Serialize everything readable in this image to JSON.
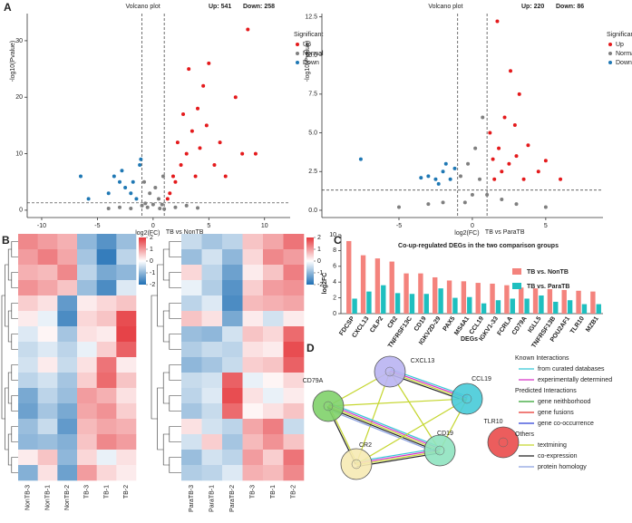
{
  "panel_labels": [
    "A",
    "B",
    "C",
    "D"
  ],
  "chart_data": [
    {
      "type": "scatter",
      "title": "Volcano plot",
      "stats": [
        "Up: 541",
        "Down: 258"
      ],
      "xlabel": "log2(FC)",
      "ylabel": "-log10(Pvalue)",
      "comparison": "TB  vs NonTB",
      "legend_title": "Significant",
      "xlim": [
        -11.3,
        12.3
      ],
      "xticks": [
        -10,
        -5,
        0,
        5,
        10
      ],
      "ylim": [
        -1.3,
        34.8
      ],
      "yticks": [
        0,
        10,
        20,
        30
      ],
      "vlines": [
        -1,
        1
      ],
      "hline": 1.3,
      "series": [
        {
          "name": "Up",
          "color": "#e41a1c",
          "x": [
            1.5,
            2,
            2.5,
            3,
            3.5,
            4,
            4.5,
            5,
            3.2,
            4.8,
            6,
            7.4,
            8.5,
            9.2,
            2.2,
            5.5,
            1.8,
            3.8,
            2.7,
            4.2,
            6.5,
            8,
            1.3
          ],
          "y": [
            3,
            5,
            8,
            10,
            14,
            18,
            22,
            26,
            25,
            15,
            12,
            20,
            32,
            10,
            12,
            8,
            6,
            6,
            17,
            11,
            6,
            10,
            2
          ]
        },
        {
          "name": "Normal",
          "color": "#7f7f7f",
          "x": [
            -0.5,
            0,
            0.5,
            0.8,
            -0.3,
            0.2,
            -2,
            2,
            3,
            -3,
            1,
            -1,
            0.6,
            -0.7,
            4,
            -4,
            0.9,
            -0.8
          ],
          "y": [
            0.5,
            1,
            2,
            1,
            3,
            4,
            0.3,
            0.5,
            0.8,
            0.5,
            0.2,
            0.8,
            0.3,
            1.2,
            0.4,
            0.3,
            6,
            5
          ]
        },
        {
          "name": "Down",
          "color": "#1f78b4",
          "x": [
            -1.5,
            -2,
            -2.5,
            -3,
            -3.5,
            -1.2,
            -1.1,
            -4,
            -2.8,
            -6.5,
            -5.8,
            -1.8
          ],
          "y": [
            2,
            3,
            4,
            5,
            6,
            8,
            9,
            3,
            7,
            6,
            2,
            5
          ]
        }
      ]
    },
    {
      "type": "scatter",
      "title": "Volcano plot",
      "stats": [
        "Up: 220",
        "Down: 86"
      ],
      "xlabel": "log2(FC)",
      "ylabel": "-log10(Pvalue)",
      "comparison": "TB  vs ParaTB",
      "legend_title": "Significant",
      "xlim": [
        -10.25,
        8.9
      ],
      "xticks": [
        -5,
        0,
        5
      ],
      "ylim": [
        -0.47,
        12.7
      ],
      "yticks": [
        {
          "value": 0,
          "label": "0.0"
        },
        {
          "value": 2.5,
          "label": "2.5"
        },
        {
          "value": 5,
          "label": "5.0"
        },
        {
          "value": 7.5,
          "label": "7.5"
        },
        {
          "value": 10,
          "label": "10.0"
        },
        {
          "value": 12.5,
          "label": "12.5"
        }
      ],
      "vlines": [
        -1,
        1
      ],
      "hline": 1.3,
      "series": [
        {
          "name": "Up",
          "color": "#e41a1c",
          "x": [
            1.5,
            2,
            2.5,
            3,
            1.8,
            2.2,
            1.2,
            3.5,
            4.5,
            5,
            2.6,
            1.7,
            3.2,
            2.9,
            6,
            1.4,
            3.8
          ],
          "y": [
            2,
            2.5,
            3,
            3.5,
            4,
            6,
            5,
            2,
            2.5,
            3.2,
            9,
            12.2,
            7.5,
            5.5,
            2,
            3.3,
            4.2
          ]
        },
        {
          "name": "Normal",
          "color": "#7f7f7f",
          "x": [
            -0.5,
            0,
            0.5,
            -0.3,
            0.2,
            -2,
            2,
            3,
            -3,
            0.7,
            -0.8,
            1,
            5,
            -5
          ],
          "y": [
            0.5,
            1,
            2,
            3,
            4,
            0.5,
            0.7,
            0.4,
            0.4,
            6,
            2.2,
            1,
            0.2,
            0.2
          ]
        },
        {
          "name": "Down",
          "color": "#1f78b4",
          "x": [
            -1.5,
            -2,
            -2.5,
            -3,
            -1.8,
            -1.2,
            -3.5,
            -7.6,
            -2.3
          ],
          "y": [
            2,
            2.5,
            2,
            2.2,
            3,
            2.7,
            2.1,
            3.3,
            1.7
          ]
        }
      ]
    },
    {
      "type": "heatmap",
      "columns": [
        "NonTB-3",
        "NonTB-1",
        "NonTB-2",
        "TB-3",
        "TB-1",
        "TB-2"
      ],
      "colorscale": [
        "#1f6fb4",
        "#ffffff",
        "#e5393e"
      ],
      "clim": [
        -2,
        2
      ],
      "cbar_ticks": [
        2,
        1,
        0,
        -1,
        -2
      ],
      "rows": [
        [
          1.2,
          1.0,
          0.8,
          -1.0,
          -1.5,
          -0.9
        ],
        [
          1.0,
          1.3,
          0.9,
          -0.8,
          -1.8,
          -0.6
        ],
        [
          0.8,
          0.7,
          1.2,
          -0.6,
          -1.2,
          -1.0
        ],
        [
          1.1,
          0.9,
          0.6,
          -0.9,
          -1.6,
          -0.3
        ],
        [
          0.5,
          0.3,
          -1.4,
          0.2,
          0.4,
          0.6
        ],
        [
          0.2,
          -0.2,
          -1.6,
          0.4,
          0.6,
          1.8
        ],
        [
          -0.3,
          0.1,
          -0.8,
          0.3,
          0.2,
          1.9
        ],
        [
          -0.5,
          -0.3,
          -0.6,
          -0.2,
          0.5,
          1.6
        ],
        [
          -0.4,
          0.2,
          -0.5,
          0.3,
          1.4,
          0.2
        ],
        [
          -0.6,
          -0.4,
          -0.8,
          0.5,
          1.5,
          0.6
        ],
        [
          -1.2,
          -0.6,
          -0.9,
          1.0,
          0.8,
          0.3
        ],
        [
          -1.3,
          -0.8,
          -1.2,
          0.9,
          1.1,
          0.5
        ],
        [
          -0.9,
          -0.5,
          -1.4,
          0.7,
          0.9,
          0.8
        ],
        [
          -1.0,
          -0.9,
          -1.1,
          0.6,
          1.2,
          1.0
        ],
        [
          0.2,
          0.6,
          -1.0,
          0.4,
          -0.2,
          0.3
        ],
        [
          -1.1,
          0.3,
          -1.3,
          1.0,
          0.4,
          0.2
        ]
      ]
    },
    {
      "type": "heatmap",
      "columns": [
        "ParaTB-3",
        "ParaTB-1",
        "ParaTB-2",
        "TB-3",
        "TB-1",
        "TB-2"
      ],
      "colorscale": [
        "#1f6fb4",
        "#ffffff",
        "#e5393e"
      ],
      "clim": [
        -2,
        2
      ],
      "cbar_ticks": [
        2,
        1,
        0,
        -1,
        -2
      ],
      "rows": [
        [
          -0.5,
          -0.8,
          -0.6,
          0.6,
          0.9,
          1.4
        ],
        [
          -0.9,
          -0.4,
          -1.0,
          0.4,
          1.2,
          1.0
        ],
        [
          0.4,
          -0.6,
          -1.3,
          0.2,
          0.6,
          1.3
        ],
        [
          -0.2,
          -0.7,
          -1.5,
          0.5,
          1.0,
          1.1
        ],
        [
          -0.6,
          -0.3,
          -1.6,
          0.7,
          0.8,
          0.9
        ],
        [
          0.6,
          0.3,
          -1.2,
          0.2,
          -0.4,
          0.2
        ],
        [
          -0.9,
          -1.0,
          -0.4,
          0.6,
          0.4,
          1.5
        ],
        [
          -0.7,
          -0.5,
          -0.6,
          0.3,
          0.2,
          1.8
        ],
        [
          -1.0,
          -0.8,
          -0.5,
          0.5,
          0.6,
          1.6
        ],
        [
          -0.5,
          -0.4,
          1.6,
          -0.2,
          0.1,
          0.4
        ],
        [
          -0.6,
          -0.3,
          1.8,
          0.3,
          -0.2,
          0.2
        ],
        [
          -0.8,
          -0.5,
          1.5,
          0.1,
          0.3,
          0.6
        ],
        [
          0.3,
          -0.4,
          -0.6,
          0.9,
          1.3,
          -0.5
        ],
        [
          -0.4,
          0.5,
          -0.8,
          0.7,
          1.1,
          0.6
        ],
        [
          -0.9,
          -0.4,
          -0.6,
          1.0,
          0.5,
          1.4
        ],
        [
          -0.7,
          -0.6,
          -0.3,
          0.8,
          0.7,
          1.2
        ]
      ]
    },
    {
      "type": "bar",
      "title": "Co-up-regulated DEGs in the two comparison groups",
      "xlabel": "DEGs",
      "ylabel": "log2FC",
      "categories": [
        "FDCSP",
        "CXCL13",
        "CILP2",
        "CR2",
        "TNFRSF13C",
        "CD19",
        "IGKV2D-29",
        "PAX5",
        "MS4A1",
        "CCL19",
        "IGKV1-33",
        "FCRLA",
        "CD79A",
        "IGLL5",
        "TNFRSF13B",
        "POU2AF1",
        "TLR10",
        "MZB1"
      ],
      "ylim": [
        0,
        10
      ],
      "yticks": [
        0,
        2,
        4,
        6,
        8,
        10
      ],
      "legend": "upper right",
      "series": [
        {
          "name": "TB vs. NonTB",
          "color": "#f4837d",
          "values": [
            9.2,
            7.4,
            7.0,
            6.6,
            5.1,
            5.1,
            4.6,
            4.2,
            4.1,
            3.9,
            3.8,
            3.6,
            3.3,
            3.2,
            3.1,
            3.0,
            2.9,
            2.8
          ]
        },
        {
          "name": "TB vs. ParaTB",
          "color": "#1fbfbf",
          "values": [
            1.9,
            2.8,
            3.6,
            2.6,
            2.5,
            2.5,
            3.2,
            2.0,
            2.1,
            1.3,
            1.7,
            1.9,
            1.9,
            2.3,
            1.5,
            1.7,
            1.2,
            1.2
          ]
        }
      ]
    },
    {
      "type": "network",
      "nodes": [
        {
          "label": "CXCL13",
          "color": "#b9b4f2"
        },
        {
          "label": "CCL19",
          "color": "#47cbd8"
        },
        {
          "label": "CD79A",
          "color": "#7fd16a"
        },
        {
          "label": "CR2",
          "color": "#f6eab4"
        },
        {
          "label": "CD19",
          "color": "#8fe3c0"
        },
        {
          "label": "TLR10",
          "color": "#ea4b4b"
        }
      ],
      "edges": [
        [
          0,
          1,
          [
            "#35c6d6",
            "#d633c8",
            "#c5d62f",
            "#222222"
          ]
        ],
        [
          0,
          2,
          [
            "#c5d62f"
          ]
        ],
        [
          0,
          3,
          [
            "#c5d62f"
          ]
        ],
        [
          0,
          4,
          [
            "#c5d62f"
          ]
        ],
        [
          2,
          1,
          [
            "#c5d62f"
          ]
        ],
        [
          2,
          3,
          [
            "#c5d62f",
            "#222222"
          ]
        ],
        [
          2,
          4,
          [
            "#35c6d6",
            "#d633c8",
            "#c5d62f",
            "#222222",
            "#8aa0e0"
          ]
        ],
        [
          3,
          4,
          [
            "#35c6d6",
            "#d633c8",
            "#c5d62f",
            "#222222"
          ]
        ],
        [
          3,
          1,
          [
            "#c5d62f"
          ]
        ],
        [
          1,
          4,
          [
            "#c5d62f"
          ]
        ]
      ],
      "legend": [
        {
          "heading": "Known Interactions",
          "items": [
            {
              "name": "from curated databases",
              "color": "#35c6d6"
            },
            {
              "name": "experimentally determined",
              "color": "#d633c8"
            }
          ]
        },
        {
          "heading": "Predicted Interactions",
          "items": [
            {
              "name": "gene neithborhood",
              "color": "#2ca02c"
            },
            {
              "name": "gene fusions",
              "color": "#e8312a"
            },
            {
              "name": "gene co-occurrence",
              "color": "#2a3fd8"
            }
          ]
        },
        {
          "heading": "Others",
          "items": [
            {
              "name": "textmining",
              "color": "#c5d62f"
            },
            {
              "name": "co-expression",
              "color": "#222222"
            },
            {
              "name": "protein homology",
              "color": "#8aa0e0"
            }
          ]
        }
      ]
    }
  ]
}
